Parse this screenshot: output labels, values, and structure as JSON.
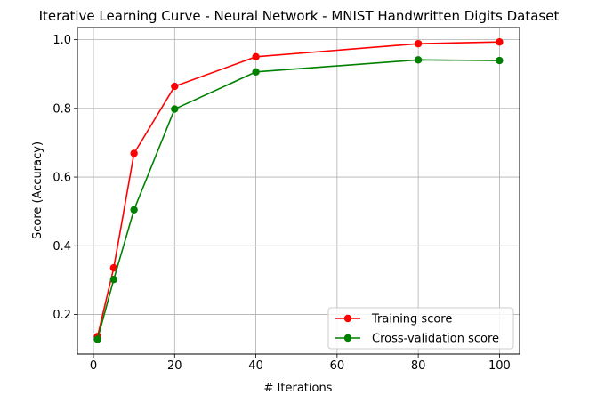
{
  "chart_data": {
    "type": "line",
    "title": "Iterative Learning Curve - Neural Network - MNIST Handwritten Digits Dataset",
    "xlabel": "# Iterations",
    "ylabel": "Score (Accuracy)",
    "x": [
      1,
      5,
      10,
      20,
      40,
      80,
      100
    ],
    "xlim": [
      -3.95,
      104.95
    ],
    "ylim": [
      0.085,
      1.035
    ],
    "xticks": [
      0,
      20,
      40,
      60,
      80,
      100
    ],
    "xtick_labels": [
      "0",
      "20",
      "40",
      "60",
      "80",
      "100"
    ],
    "yticks": [
      0.2,
      0.4,
      0.6,
      0.8,
      1.0
    ],
    "ytick_labels": [
      "0.2",
      "0.4",
      "0.6",
      "0.8",
      "1.0"
    ],
    "grid": true,
    "legend_position": "lower-right",
    "series": [
      {
        "name": "Training score",
        "color": "#ff0000",
        "marker": "circle",
        "values": [
          0.136,
          0.336,
          0.669,
          0.864,
          0.95,
          0.988,
          0.993
        ]
      },
      {
        "name": "Cross-validation score",
        "color": "#008000",
        "marker": "circle",
        "values": [
          0.128,
          0.302,
          0.505,
          0.798,
          0.906,
          0.941,
          0.939
        ]
      }
    ]
  }
}
